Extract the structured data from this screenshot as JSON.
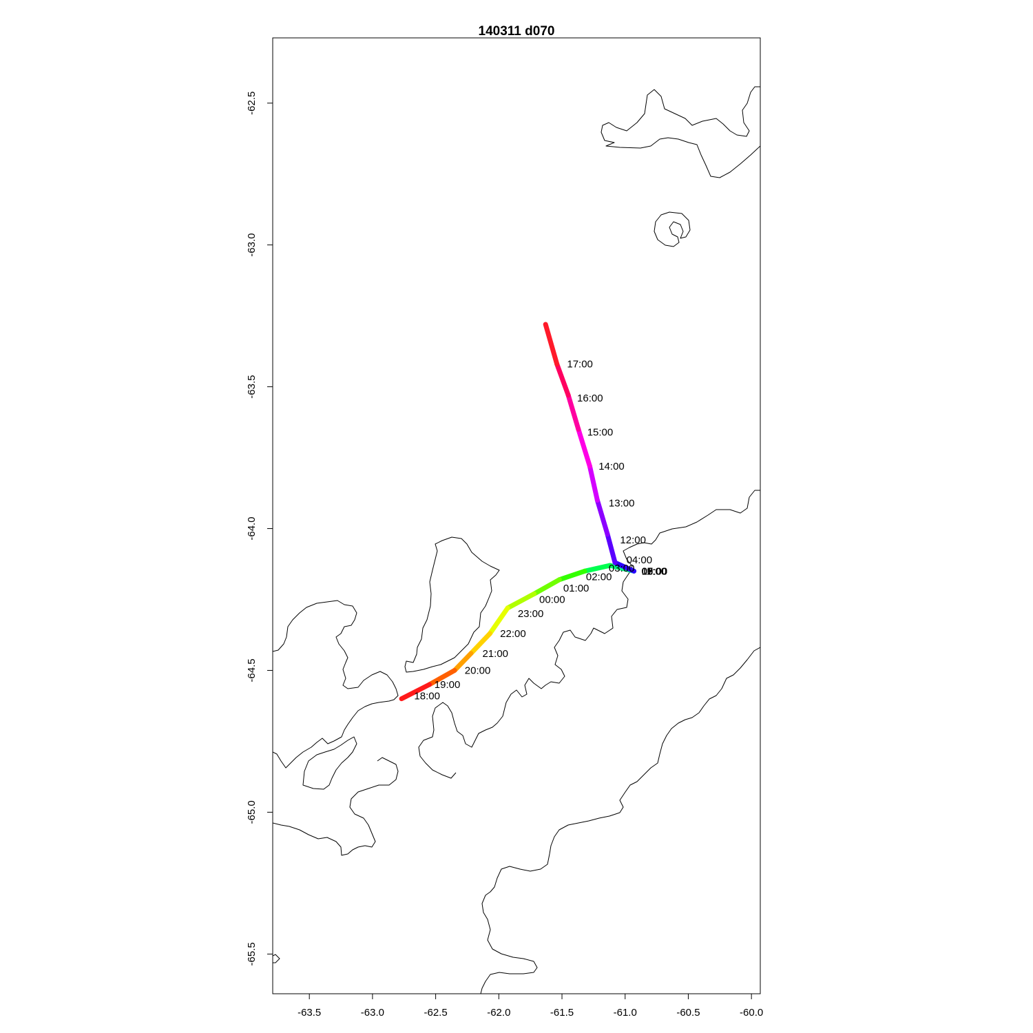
{
  "title": "140311   d070",
  "x_ticks": [
    "-63.5",
    "-63.0",
    "-62.5",
    "-62.0",
    "-61.5",
    "-61.0",
    "-60.5",
    "-60.0"
  ],
  "y_ticks": [
    "-62.5",
    "-63.0",
    "-63.5",
    "-64.0",
    "-64.5",
    "-65.0",
    "-65.5"
  ],
  "chart_data": {
    "type": "line",
    "title": "140311   d070",
    "xlabel": "",
    "ylabel": "",
    "xlim": [
      -63.79,
      -59.93
    ],
    "ylim": [
      -65.64,
      -62.27
    ],
    "track": [
      {
        "x": -60.93,
        "y": -64.15,
        "color": "#3a00ff"
      },
      {
        "x": -61.08,
        "y": -64.12,
        "color": "#2a00ff"
      },
      {
        "x": -61.14,
        "y": -64.02,
        "color": "#5a00ff"
      },
      {
        "x": -61.22,
        "y": -63.9,
        "color": "#8c00ff"
      },
      {
        "x": -61.28,
        "y": -63.78,
        "color": "#d400ff"
      },
      {
        "x": -61.37,
        "y": -63.65,
        "color": "#ff00e6"
      },
      {
        "x": -61.45,
        "y": -63.53,
        "color": "#ff00a0"
      },
      {
        "x": -61.54,
        "y": -63.42,
        "color": "#ff0060"
      },
      {
        "x": -61.63,
        "y": -63.28,
        "color": "#ff1a2a"
      }
    ],
    "track_return": [
      {
        "x": -60.93,
        "y": -64.15,
        "color": "#2a40ff"
      },
      {
        "x": -61.12,
        "y": -64.13,
        "color": "#00ff80"
      },
      {
        "x": -61.32,
        "y": -64.15,
        "color": "#00ff50"
      },
      {
        "x": -61.52,
        "y": -64.18,
        "color": "#33ff00"
      },
      {
        "x": -61.72,
        "y": -64.23,
        "color": "#70ff00"
      },
      {
        "x": -61.93,
        "y": -64.28,
        "color": "#b0ff00"
      },
      {
        "x": -62.07,
        "y": -64.37,
        "color": "#e6ff00"
      },
      {
        "x": -62.22,
        "y": -64.44,
        "color": "#ffd200"
      },
      {
        "x": -62.35,
        "y": -64.5,
        "color": "#ffa000"
      },
      {
        "x": -62.55,
        "y": -64.55,
        "color": "#ff6000"
      },
      {
        "x": -62.77,
        "y": -64.6,
        "color": "#ff1a1a"
      }
    ],
    "time_labels": [
      {
        "text": "17:00",
        "x": -61.46,
        "y": -63.42
      },
      {
        "text": "16:00",
        "x": -61.38,
        "y": -63.54
      },
      {
        "text": "15:00",
        "x": -61.3,
        "y": -63.66
      },
      {
        "text": "14:00",
        "x": -61.21,
        "y": -63.78
      },
      {
        "text": "13:00",
        "x": -61.13,
        "y": -63.91
      },
      {
        "text": "12:00",
        "x": -61.04,
        "y": -64.04
      },
      {
        "text": "04:00",
        "x": -60.99,
        "y": -64.11
      },
      {
        "text": "03:00",
        "x": -61.13,
        "y": -64.14
      },
      {
        "text": "02:00",
        "x": -61.31,
        "y": -64.17
      },
      {
        "text": "01:00",
        "x": -61.49,
        "y": -64.21
      },
      {
        "text": "00:00",
        "x": -61.68,
        "y": -64.25
      },
      {
        "text": "23:00",
        "x": -61.85,
        "y": -64.3
      },
      {
        "text": "22:00",
        "x": -61.99,
        "y": -64.37
      },
      {
        "text": "21:00",
        "x": -62.13,
        "y": -64.44
      },
      {
        "text": "20:00",
        "x": -62.27,
        "y": -64.5
      },
      {
        "text": "19:00",
        "x": -62.51,
        "y": -64.55
      },
      {
        "text": "18:00",
        "x": -62.67,
        "y": -64.59
      },
      {
        "text": "05:00",
        "x": -60.87,
        "y": -64.15
      },
      {
        "text": "06:00",
        "x": -60.87,
        "y": -64.15
      },
      {
        "text": "07:00",
        "x": -60.87,
        "y": -64.15
      },
      {
        "text": "08:00",
        "x": -60.87,
        "y": -64.15
      },
      {
        "text": "09:00",
        "x": -60.87,
        "y": -64.15
      },
      {
        "text": "10:00",
        "x": -60.87,
        "y": -64.15
      },
      {
        "text": "11:00",
        "x": -60.87,
        "y": -64.15
      }
    ]
  }
}
